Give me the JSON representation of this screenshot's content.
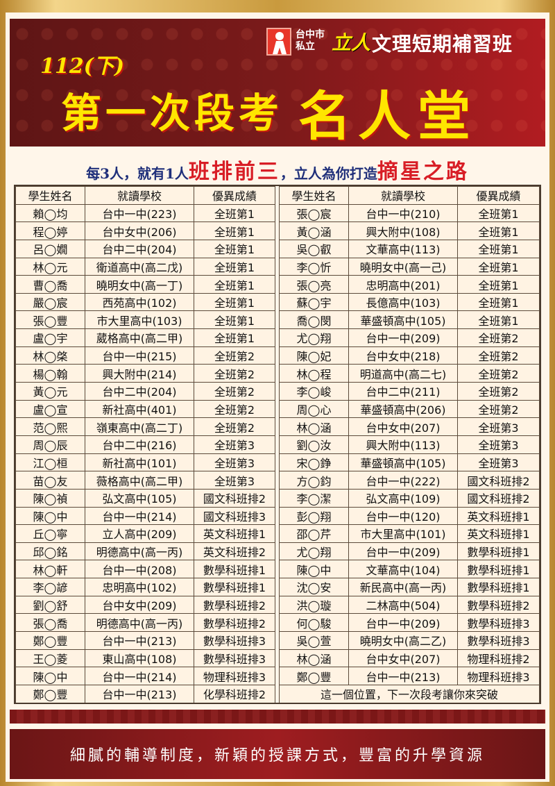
{
  "header": {
    "city": "台中市",
    "private": "私立",
    "brand": "立人",
    "school_type": "文理短期補習班",
    "term": "112(下)",
    "title_main": "第一次段考",
    "title_highlight": "名人堂"
  },
  "slogan": {
    "part1": "每3人，就有1人",
    "highlight1": "班排前三",
    "part2": "，立人為你打造",
    "highlight2": "摘星之路"
  },
  "table": {
    "columns": [
      "學生姓名",
      "就讀學校",
      "優異成績"
    ],
    "left_rows": [
      [
        "賴◯均",
        "台中一中(223)",
        "全班第1"
      ],
      [
        "程◯婷",
        "台中女中(206)",
        "全班第1"
      ],
      [
        "呂◯嫺",
        "台中二中(204)",
        "全班第1"
      ],
      [
        "林◯元",
        "衛道高中(高二戊)",
        "全班第1"
      ],
      [
        "曹◯喬",
        "曉明女中(高一丁)",
        "全班第1"
      ],
      [
        "嚴◯宸",
        "西苑高中(102)",
        "全班第1"
      ],
      [
        "張◯豐",
        "市大里高中(103)",
        "全班第1"
      ],
      [
        "盧◯宇",
        "葳格高中(高二甲)",
        "全班第1"
      ],
      [
        "林◯棨",
        "台中一中(215)",
        "全班第2"
      ],
      [
        "楊◯翰",
        "興大附中(214)",
        "全班第2"
      ],
      [
        "黃◯元",
        "台中二中(204)",
        "全班第2"
      ],
      [
        "盧◯宣",
        "新社高中(401)",
        "全班第2"
      ],
      [
        "范◯熙",
        "嶺東高中(高二丁)",
        "全班第2"
      ],
      [
        "周◯辰",
        "台中二中(216)",
        "全班第3"
      ],
      [
        "江◯桓",
        "新社高中(101)",
        "全班第3"
      ],
      [
        "苗◯友",
        "薇格高中(高二甲)",
        "全班第3"
      ],
      [
        "陳◯禎",
        "弘文高中(105)",
        "國文科班排2"
      ],
      [
        "陳◯中",
        "台中一中(214)",
        "國文科班排3"
      ],
      [
        "丘◯寧",
        "立人高中(209)",
        "英文科班排1"
      ],
      [
        "邱◯銘",
        "明德高中(高一丙)",
        "英文科班排2"
      ],
      [
        "林◯軒",
        "台中一中(208)",
        "數學科班排1"
      ],
      [
        "李◯諺",
        "忠明高中(102)",
        "數學科班排1"
      ],
      [
        "劉◯舒",
        "台中女中(209)",
        "數學科班排2"
      ],
      [
        "張◯喬",
        "明德高中(高一丙)",
        "數學科班排2"
      ],
      [
        "鄭◯豐",
        "台中一中(213)",
        "數學科班排3"
      ],
      [
        "王◯菱",
        "東山高中(108)",
        "數學科班排3"
      ],
      [
        "陳◯中",
        "台中一中(214)",
        "物理科班排3"
      ],
      [
        "鄭◯豐",
        "台中一中(213)",
        "化學科班排2"
      ]
    ],
    "right_rows": [
      [
        "張◯宸",
        "台中一中(210)",
        "全班第1"
      ],
      [
        "黃◯涵",
        "興大附中(108)",
        "全班第1"
      ],
      [
        "吳◯叡",
        "文華高中(113)",
        "全班第1"
      ],
      [
        "李◯忻",
        "曉明女中(高一己)",
        "全班第1"
      ],
      [
        "張◯亮",
        "忠明高中(201)",
        "全班第1"
      ],
      [
        "蘇◯宇",
        "長億高中(103)",
        "全班第1"
      ],
      [
        "喬◯閔",
        "華盛頓高中(105)",
        "全班第1"
      ],
      [
        "尤◯翔",
        "台中一中(209)",
        "全班第2"
      ],
      [
        "陳◯妃",
        "台中女中(218)",
        "全班第2"
      ],
      [
        "林◯程",
        "明道高中(高二七)",
        "全班第2"
      ],
      [
        "李◯峻",
        "台中二中(211)",
        "全班第2"
      ],
      [
        "周◯心",
        "華盛頓高中(206)",
        "全班第2"
      ],
      [
        "林◯涵",
        "台中女中(207)",
        "全班第3"
      ],
      [
        "劉◯汝",
        "興大附中(113)",
        "全班第3"
      ],
      [
        "宋◯錚",
        "華盛頓高中(105)",
        "全班第3"
      ],
      [
        "方◯鈞",
        "台中一中(222)",
        "國文科班排2"
      ],
      [
        "李◯潔",
        "弘文高中(109)",
        "國文科班排2"
      ],
      [
        "彭◯翔",
        "台中一中(120)",
        "英文科班排1"
      ],
      [
        "邵◯芹",
        "市大里高中(101)",
        "英文科班排1"
      ],
      [
        "尤◯翔",
        "台中一中(209)",
        "數學科班排1"
      ],
      [
        "陳◯中",
        "文華高中(104)",
        "數學科班排1"
      ],
      [
        "沈◯安",
        "新民高中(高一丙)",
        "數學科班排1"
      ],
      [
        "洪◯璇",
        "二林高中(504)",
        "數學科班排2"
      ],
      [
        "何◯駿",
        "台中一中(209)",
        "數學科班排3"
      ],
      [
        "吳◯萱",
        "曉明女中(高二乙)",
        "數學科班排3"
      ],
      [
        "林◯涵",
        "台中女中(207)",
        "物理科班排2"
      ],
      [
        "鄭◯豐",
        "台中一中(213)",
        "物理科班排3"
      ]
    ],
    "closing_message": "這一個位置，下一次段考讓你來突破"
  },
  "footer": {
    "text": "細膩的輔導制度，新穎的授課方式，豐富的升學資源"
  },
  "colors": {
    "header_red": "#7b1a1a",
    "title_yellow": "#ffe600",
    "slogan_blue": "#1f2f7a",
    "slogan_red": "#d81e26",
    "gold_frame": "#c99a3e"
  }
}
